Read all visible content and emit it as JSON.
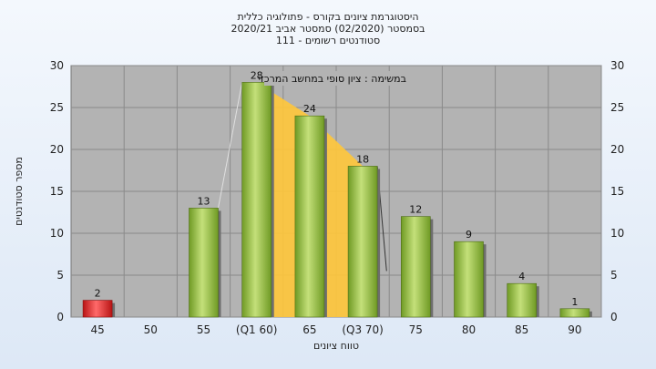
{
  "chart_data": {
    "type": "bar",
    "title_lines": [
      "היסטוגרמת ציונים בקורס - פתולוגיה כללית",
      "בסמסטר (02/2020) סמסטר אביב 2020/21",
      "סטודנטים רשומים - 111"
    ],
    "xlabel": "טווח ציונים",
    "ylabel": "מספר סטודנטים",
    "ylim": [
      0,
      30
    ],
    "yticks": [
      0,
      5,
      10,
      15,
      20,
      25,
      30
    ],
    "categories": [
      "45",
      "50",
      "55",
      "(Q1 60)",
      "65",
      "(Q3 70)",
      "75",
      "80",
      "85",
      "90"
    ],
    "values": [
      2,
      0,
      13,
      28,
      24,
      18,
      12,
      9,
      4,
      1
    ],
    "data_labels": [
      "2",
      "",
      "13",
      "28",
      "24",
      "18",
      "12",
      "9",
      "4",
      "1"
    ],
    "bar_colors": [
      "#d92020",
      "#8cb83a",
      "#8cb83a",
      "#8cb83a",
      "#8cb83a",
      "#8cb83a",
      "#8cb83a",
      "#8cb83a",
      "#8cb83a",
      "#8cb83a"
    ],
    "iqr_highlight": {
      "from_category": "(Q1 60)",
      "to_category": "(Q3 70)",
      "color": "#ffc63a"
    },
    "annotation": "במשימה : ציון סופי במחשב המרכזי",
    "grid": true,
    "plot_background": "#b3b3b3"
  }
}
